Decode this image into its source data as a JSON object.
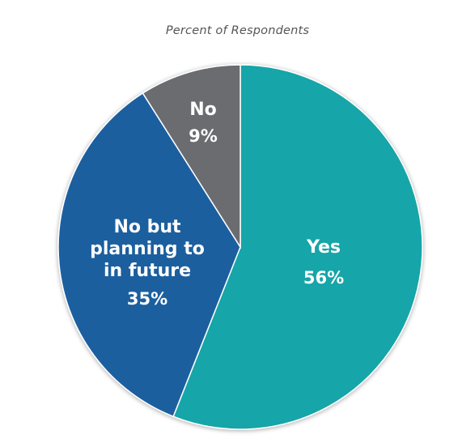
{
  "chart_data": {
    "type": "pie",
    "title": "Percent of Respondents",
    "slices": [
      {
        "label_lines": [
          "Yes"
        ],
        "value": 56,
        "value_label": "56%",
        "color": "#14a5a8"
      },
      {
        "label_lines": [
          "No but",
          "planning to",
          "in future"
        ],
        "value": 35,
        "value_label": "35%",
        "color": "#1d5e9f"
      },
      {
        "label_lines": [
          "No"
        ],
        "value": 9,
        "value_label": "9%",
        "color": "#6b6c70"
      }
    ]
  }
}
